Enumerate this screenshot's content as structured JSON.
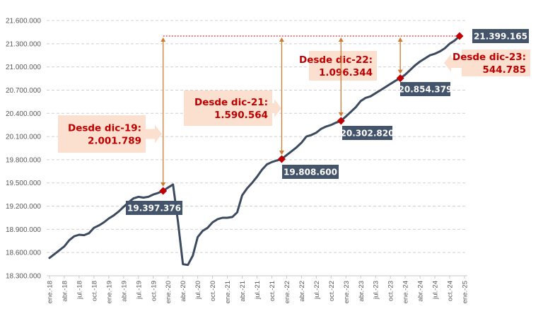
{
  "chart_data": {
    "type": "line",
    "title": "",
    "xlabel": "",
    "ylabel": "",
    "ylim": [
      18300000,
      21600000
    ],
    "yticks": [
      "18.300.000",
      "18.600.000",
      "18.900.000",
      "19.200.000",
      "19.500.000",
      "19.800.000",
      "20.100.000",
      "20.400.000",
      "20.700.000",
      "21.000.000",
      "21.300.000",
      "21.600.000"
    ],
    "ytick_values": [
      18300000,
      18600000,
      18900000,
      19200000,
      19500000,
      19800000,
      20100000,
      20400000,
      20700000,
      21000000,
      21300000,
      21600000
    ],
    "xticks": [
      "ene.-18",
      "abr.-18",
      "jul.-18",
      "oct.-18",
      "ene.-19",
      "abr.-19",
      "jul.-19",
      "oct.-19",
      "ene.-20",
      "abr.-20",
      "jul.-20",
      "oct.-20",
      "ene.-21",
      "abr.-21",
      "jul.-21",
      "oct.-21",
      "ene.-22",
      "abr.-22",
      "jul.-22",
      "oct.-22",
      "ene.-23",
      "abr.-23",
      "jul.-23",
      "oct.-23",
      "ene.-24",
      "abr.-24",
      "jul.-24",
      "oct.-24",
      "ene.-25"
    ],
    "grid": "horizontal-dashed",
    "legend": "none",
    "x_start": "ene.-18",
    "x_frequency": "monthly",
    "series": [
      {
        "color": "#3b4a5e",
        "values": [
          18530000,
          18580000,
          18630000,
          18680000,
          18760000,
          18810000,
          18830000,
          18825000,
          18850000,
          18920000,
          18950000,
          18990000,
          19040000,
          19080000,
          19130000,
          19190000,
          19250000,
          19300000,
          19320000,
          19310000,
          19320000,
          19350000,
          19370000,
          19397376,
          19440000,
          19480000,
          19000000,
          18450000,
          18440000,
          18560000,
          18800000,
          18880000,
          18920000,
          18990000,
          19030000,
          19050000,
          19050000,
          19060000,
          19120000,
          19340000,
          19430000,
          19500000,
          19580000,
          19670000,
          19740000,
          19770000,
          19790000,
          19808600,
          19860000,
          19910000,
          19960000,
          20020000,
          20100000,
          20120000,
          20150000,
          20200000,
          20230000,
          20250000,
          20280000,
          20302820,
          20360000,
          20420000,
          20480000,
          20560000,
          20600000,
          20620000,
          20660000,
          20700000,
          20740000,
          20780000,
          20820000,
          20854379,
          20900000,
          20960000,
          21020000,
          21070000,
          21110000,
          21150000,
          21170000,
          21200000,
          21240000,
          21300000,
          21340000,
          21399165
        ]
      }
    ],
    "highlighted_points": [
      {
        "label": "19.397.376",
        "month_index": 23,
        "value": 19397376
      },
      {
        "label": "19.808.600",
        "month_index": 47,
        "value": 19808600
      },
      {
        "label": "20.302.820",
        "month_index": 59,
        "value": 20302820
      },
      {
        "label": "20.854.379",
        "month_index": 71,
        "value": 20854379
      },
      {
        "label": "21.399.165",
        "month_index": 83,
        "value": 21399165
      }
    ],
    "annotations": [
      {
        "line1": "Desde dic-19:",
        "line2": "2.001.789"
      },
      {
        "line1": "Desde dic-21:",
        "line2": "1.590.564"
      },
      {
        "line1": "Desde dic-22:",
        "line2": "1.096.344"
      },
      {
        "line1": "Desde dic-23:",
        "line2": "544.785"
      }
    ],
    "colors": {
      "line": "#3b4a5e",
      "marker": "#c00000",
      "label_bg": "#44546a",
      "callout_bg": "#fbe0cf",
      "callout_text": "#c00000",
      "arrow": "#d07a30"
    }
  }
}
